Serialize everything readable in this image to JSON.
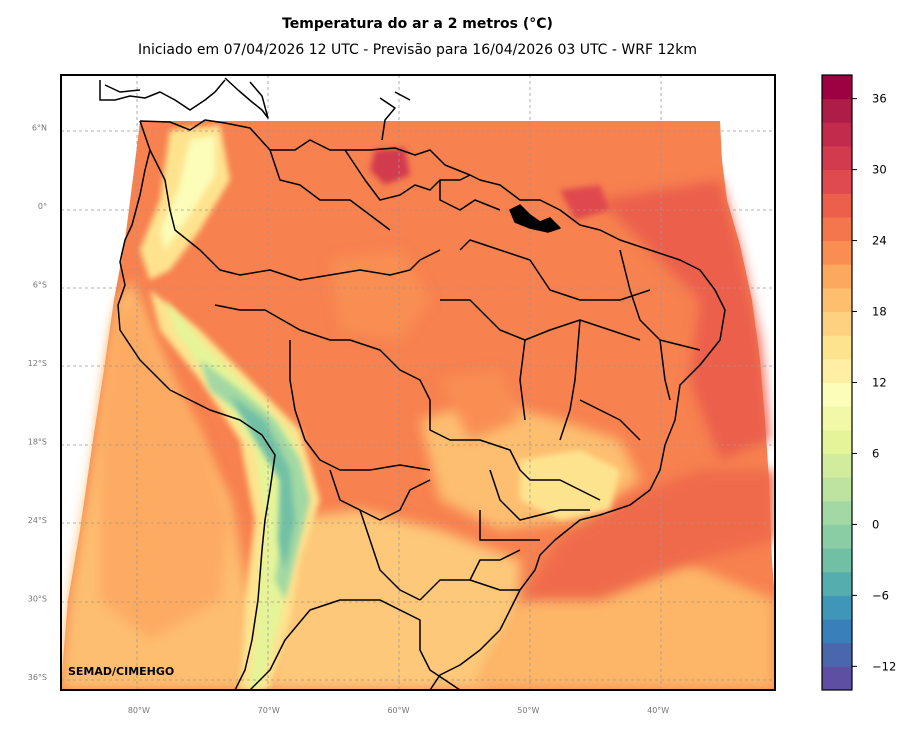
{
  "title": "Temperatura do ar a 2 metros (°C)",
  "subtitle": "Iniciado em 07/04/2026 12 UTC - Previsão para 16/04/2026 03 UTC - WRF 12km",
  "credit": "SEMAD/CIMEHGO",
  "lat_ticks": [
    "6°N",
    "0°",
    "6°S",
    "12°S",
    "18°S",
    "24°S",
    "30°S",
    "36°S"
  ],
  "lon_ticks": [
    "80°W",
    "70°W",
    "60°W",
    "50°W",
    "40°W"
  ],
  "colorbar": {
    "min": -14,
    "max": 38,
    "step": 2,
    "tick_values": [
      -12,
      -6,
      0,
      6,
      12,
      18,
      24,
      30,
      36
    ],
    "tick_labels": [
      "−12",
      "−6",
      "0",
      "6",
      "12",
      "18",
      "24",
      "30",
      "36"
    ],
    "colors": [
      "#5e4fa2",
      "#4a67ad",
      "#3880b9",
      "#3f96b7",
      "#55aead",
      "#71c0a5",
      "#8acca4",
      "#a2d8a3",
      "#bce3a0",
      "#d2ec9d",
      "#e5f498",
      "#f2f9a6",
      "#fcfdb8",
      "#feefa3",
      "#fee38f",
      "#fdd17f",
      "#fdbe6f",
      "#fca85f",
      "#f98e53",
      "#f4764c",
      "#eb5f4b",
      "#df4a4e",
      "#d23a4e",
      "#c22b4c",
      "#ae1c48",
      "#9e0142"
    ]
  },
  "map_data": {
    "variable": "2 m air temperature",
    "units": "°C",
    "region": "South America",
    "lon_range": [
      -86,
      -31
    ],
    "lat_range": [
      -37,
      10
    ],
    "gridlines": true,
    "gridline_lons": [
      -80,
      -70,
      -60,
      -50,
      -40
    ],
    "gridline_lats": [
      6,
      0,
      -6,
      -12,
      -18,
      -24,
      -30,
      -36
    ],
    "warm_zones": [
      "Amazon basin ~26-28",
      "NE Brazil coast/Atlantic ~28-30",
      "French Guiana/Guyana coast ~28-30",
      "Pacific ~22-24"
    ],
    "cold_zones": [
      "Andes ~-4 to 6"
    ]
  }
}
